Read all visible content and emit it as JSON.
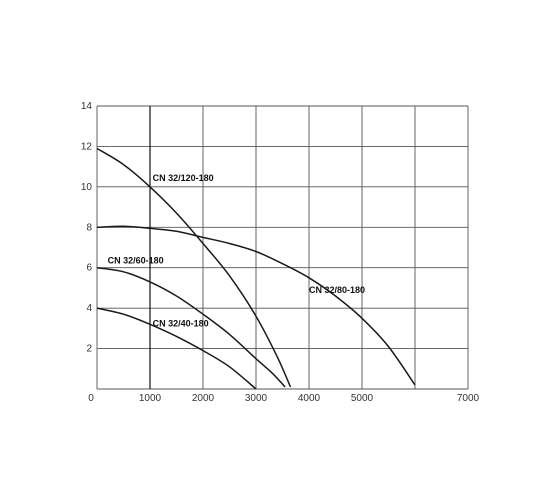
{
  "chart_data": {
    "type": "line",
    "title": "",
    "xlabel": "",
    "ylabel": "",
    "xlim": [
      0,
      7000
    ],
    "ylim": [
      0,
      14
    ],
    "x_ticks": [
      "0",
      "1000",
      "2000",
      "3000",
      "4000",
      "5000",
      "7000"
    ],
    "y_ticks": [
      "2",
      "4",
      "6",
      "8",
      "10",
      "12",
      "14"
    ],
    "grid": true,
    "colors": {
      "curve": "#1a1a1a",
      "grid": "#555555"
    },
    "series": [
      {
        "name": "CN 32/120-180",
        "x": [
          0,
          500,
          1000,
          1500,
          2000,
          2500,
          3000,
          3400,
          3650
        ],
        "y": [
          11.9,
          11.1,
          10.0,
          8.7,
          7.2,
          5.6,
          3.6,
          1.6,
          0.1
        ]
      },
      {
        "name": "CN 32/80-180",
        "x": [
          0,
          500,
          1000,
          1500,
          2000,
          2500,
          3000,
          3500,
          4000,
          4500,
          5000,
          5500,
          6000
        ],
        "y": [
          8.0,
          8.05,
          7.95,
          7.8,
          7.5,
          7.2,
          6.8,
          6.2,
          5.5,
          4.6,
          3.5,
          2.1,
          0.2
        ]
      },
      {
        "name": "CN 32/60-180",
        "x": [
          0,
          500,
          1000,
          1500,
          2000,
          2500,
          3000,
          3300,
          3550
        ],
        "y": [
          6.0,
          5.8,
          5.3,
          4.6,
          3.7,
          2.7,
          1.5,
          0.8,
          0.1
        ]
      },
      {
        "name": "CN 32/40-180",
        "x": [
          0,
          500,
          1000,
          1500,
          2000,
          2500,
          3000
        ],
        "y": [
          4.0,
          3.7,
          3.2,
          2.6,
          1.9,
          1.1,
          0.0
        ]
      }
    ]
  }
}
